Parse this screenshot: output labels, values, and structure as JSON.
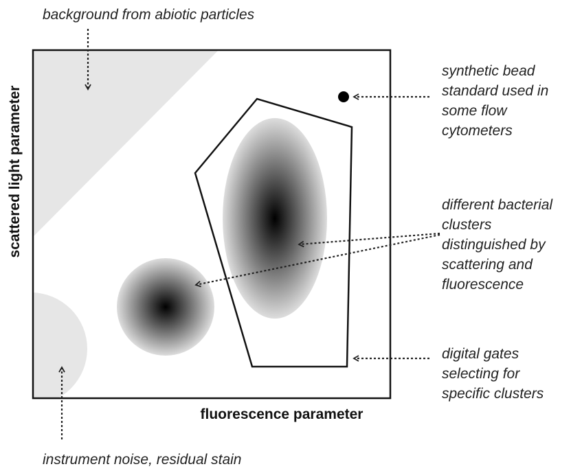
{
  "axes": {
    "x_label": "fluorescence parameter",
    "y_label": "scattered light  parameter"
  },
  "annotations": {
    "background": [
      "background from abiotic particles"
    ],
    "bead": [
      "synthetic bead",
      "standard used in",
      "some flow",
      "cytometers"
    ],
    "clusters": [
      "different bacterial",
      "clusters",
      "distinguished by",
      "scattering and",
      "fluorescence"
    ],
    "gates": [
      "digital gates",
      "selecting for",
      "specific clusters"
    ],
    "noise": [
      "instrument noise, residual stain"
    ]
  }
}
